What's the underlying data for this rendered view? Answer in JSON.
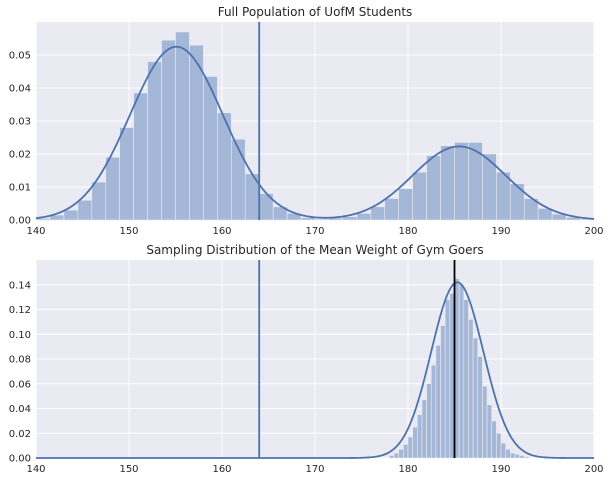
{
  "chart_data": [
    {
      "type": "bar",
      "title": "Full Population of UofM Students",
      "xlim": [
        140,
        200
      ],
      "ylim": [
        0,
        0.06
      ],
      "xticks": [
        140,
        150,
        160,
        170,
        180,
        190,
        200
      ],
      "yticks": [
        0.0,
        0.01,
        0.02,
        0.03,
        0.04,
        0.05
      ],
      "ytick_labels": [
        "0.00",
        "0.01",
        "0.02",
        "0.03",
        "0.04",
        "0.05"
      ],
      "grid": true,
      "bin_width": 1.5,
      "histogram": {
        "color": "#a5b7d6",
        "bins": [
          [
            140.0,
            0.0005
          ],
          [
            141.5,
            0.0015
          ],
          [
            143.0,
            0.003
          ],
          [
            144.5,
            0.006
          ],
          [
            146.0,
            0.0115
          ],
          [
            147.5,
            0.019
          ],
          [
            149.0,
            0.028
          ],
          [
            150.5,
            0.0385
          ],
          [
            152.0,
            0.048
          ],
          [
            153.5,
            0.0545
          ],
          [
            155.0,
            0.057
          ],
          [
            156.5,
            0.053
          ],
          [
            158.0,
            0.0435
          ],
          [
            159.5,
            0.0325
          ],
          [
            161.0,
            0.0245
          ],
          [
            162.5,
            0.014
          ],
          [
            164.0,
            0.008
          ],
          [
            165.5,
            0.004
          ],
          [
            167.0,
            0.002
          ],
          [
            168.5,
            0.0007
          ],
          [
            170.0,
            0.0003
          ],
          [
            171.5,
            0.0006
          ],
          [
            173.0,
            0.001
          ],
          [
            174.5,
            0.002
          ],
          [
            176.0,
            0.004
          ],
          [
            177.5,
            0.0065
          ],
          [
            179.0,
            0.0095
          ],
          [
            180.5,
            0.0145
          ],
          [
            182.0,
            0.0195
          ],
          [
            183.5,
            0.0225
          ],
          [
            185.0,
            0.0235
          ],
          [
            186.5,
            0.0235
          ],
          [
            188.0,
            0.02
          ],
          [
            189.5,
            0.0145
          ],
          [
            191.0,
            0.011
          ],
          [
            192.5,
            0.0065
          ],
          [
            194.0,
            0.0035
          ],
          [
            195.5,
            0.0018
          ],
          [
            197.0,
            0.0008
          ],
          [
            198.5,
            0.0003
          ]
        ]
      },
      "kde": {
        "color": "#4c72b0",
        "components": [
          {
            "weight": 0.0525,
            "mean": 155.1,
            "sd": 5.0
          },
          {
            "weight": 0.0223,
            "mean": 185.5,
            "sd": 5.0
          }
        ]
      },
      "vlines": [
        {
          "x": 164.0,
          "color": "#4c72b0"
        }
      ]
    },
    {
      "type": "bar",
      "title": "Sampling Distribution of the Mean Weight of Gym Goers",
      "xlim": [
        140,
        200
      ],
      "ylim": [
        0,
        0.16
      ],
      "xticks": [
        140,
        150,
        160,
        170,
        180,
        190,
        200
      ],
      "yticks": [
        0.0,
        0.02,
        0.04,
        0.06,
        0.08,
        0.1,
        0.12,
        0.14
      ],
      "ytick_labels": [
        "0.00",
        "0.02",
        "0.04",
        "0.06",
        "0.08",
        "0.10",
        "0.12",
        "0.14"
      ],
      "grid": true,
      "bin_width": 0.5,
      "histogram": {
        "color": "#a5b7d6",
        "bins": [
          [
            178.0,
            0.002
          ],
          [
            178.5,
            0.004
          ],
          [
            179.0,
            0.007
          ],
          [
            179.5,
            0.011
          ],
          [
            180.0,
            0.017
          ],
          [
            180.5,
            0.025
          ],
          [
            181.0,
            0.035
          ],
          [
            181.5,
            0.047
          ],
          [
            182.0,
            0.06
          ],
          [
            182.5,
            0.075
          ],
          [
            183.0,
            0.091
          ],
          [
            183.5,
            0.107
          ],
          [
            184.0,
            0.128
          ],
          [
            184.5,
            0.133
          ],
          [
            185.0,
            0.145
          ],
          [
            185.5,
            0.14
          ],
          [
            186.0,
            0.128
          ],
          [
            186.5,
            0.112
          ],
          [
            187.0,
            0.097
          ],
          [
            187.5,
            0.082
          ],
          [
            188.0,
            0.058
          ],
          [
            188.5,
            0.043
          ],
          [
            189.0,
            0.03
          ],
          [
            189.5,
            0.02
          ],
          [
            190.0,
            0.012
          ],
          [
            190.5,
            0.007
          ],
          [
            191.0,
            0.004
          ],
          [
            191.5,
            0.003
          ],
          [
            192.0,
            0.002
          ],
          [
            192.5,
            0.001
          ]
        ]
      },
      "kde": {
        "color": "#4c72b0",
        "components": [
          {
            "weight": 0.142,
            "mean": 185.3,
            "sd": 2.8
          }
        ]
      },
      "vlines": [
        {
          "x": 164.0,
          "color": "#4c72b0"
        },
        {
          "x": 185.0,
          "color": "#000000"
        }
      ]
    }
  ]
}
